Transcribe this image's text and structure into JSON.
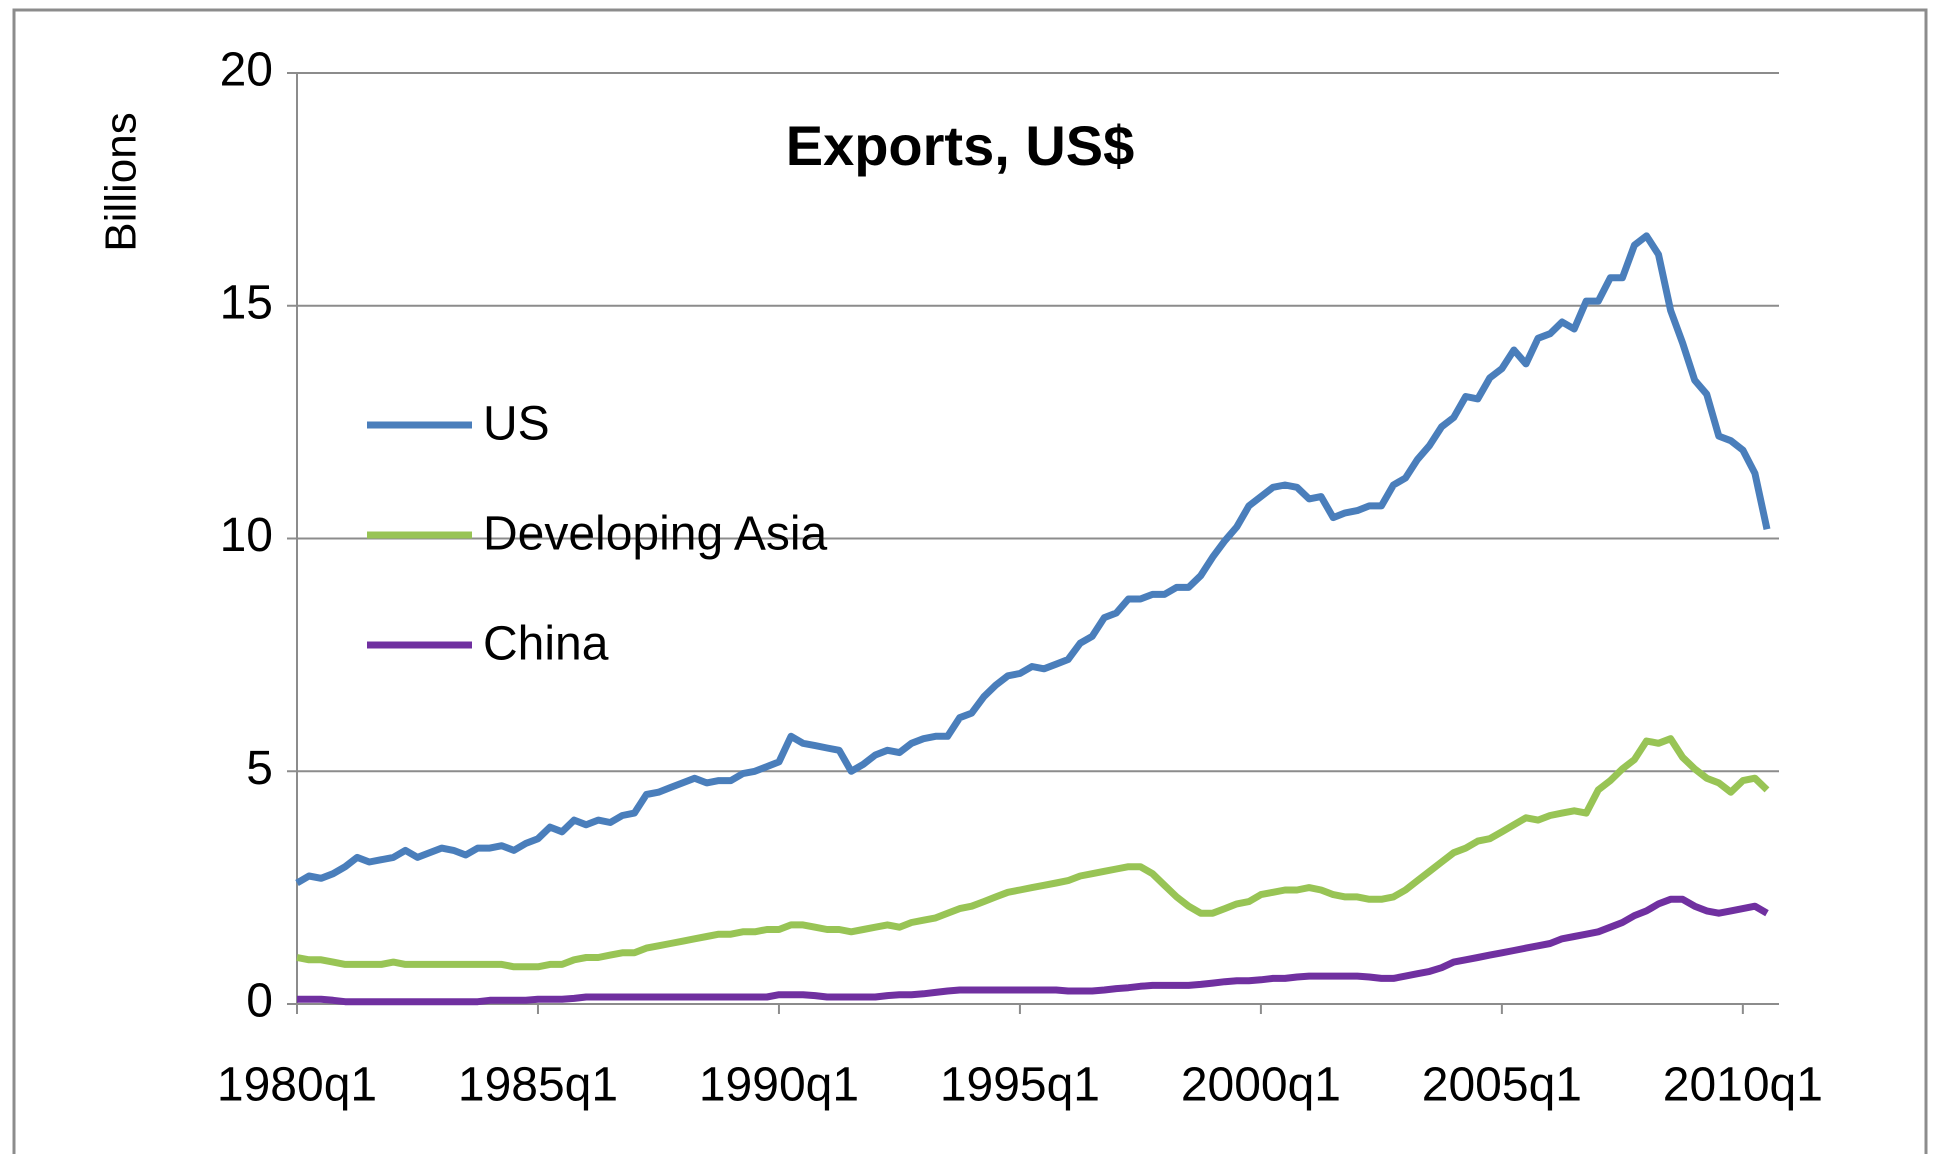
{
  "chart_data": {
    "type": "line",
    "title": "Exports, US$",
    "y_label": "Billions",
    "categories": [
      "1980q1",
      null,
      null,
      null,
      null,
      null,
      null,
      null,
      null,
      null,
      null,
      null,
      null,
      null,
      null,
      null,
      null,
      null,
      null,
      null,
      "1985q1",
      null,
      null,
      null,
      null,
      null,
      null,
      null,
      null,
      null,
      null,
      null,
      null,
      null,
      null,
      null,
      null,
      null,
      null,
      null,
      "1990q1",
      null,
      null,
      null,
      null,
      null,
      null,
      null,
      null,
      null,
      null,
      null,
      null,
      null,
      null,
      null,
      null,
      null,
      null,
      null,
      "1995q1",
      null,
      null,
      null,
      null,
      null,
      null,
      null,
      null,
      null,
      null,
      null,
      null,
      null,
      null,
      null,
      null,
      null,
      null,
      null,
      "2000q1",
      null,
      null,
      null,
      null,
      null,
      null,
      null,
      null,
      null,
      null,
      null,
      null,
      null,
      null,
      null,
      null,
      null,
      null,
      null,
      "2005q1",
      null,
      null,
      null,
      null,
      null,
      null,
      null,
      null,
      null,
      null,
      null,
      null,
      null,
      null,
      null,
      null,
      null,
      null,
      null,
      "2010q1",
      null,
      null
    ],
    "series": [
      {
        "name": "US",
        "color": "#4a7ebb",
        "values": [
          2.6,
          2.75,
          2.7,
          2.8,
          2.95,
          3.15,
          3.05,
          3.1,
          3.15,
          3.3,
          3.15,
          3.25,
          3.35,
          3.3,
          3.2,
          3.35,
          3.35,
          3.4,
          3.3,
          3.45,
          3.55,
          3.8,
          3.7,
          3.95,
          3.85,
          3.95,
          3.9,
          4.05,
          4.1,
          4.5,
          4.55,
          4.65,
          4.75,
          4.85,
          4.75,
          4.8,
          4.8,
          4.95,
          5.0,
          5.1,
          5.2,
          5.75,
          5.6,
          5.55,
          5.5,
          5.45,
          5.0,
          5.15,
          5.35,
          5.45,
          5.4,
          5.6,
          5.7,
          5.75,
          5.75,
          6.15,
          6.25,
          6.6,
          6.85,
          7.05,
          7.1,
          7.25,
          7.2,
          7.3,
          7.4,
          7.75,
          7.9,
          8.3,
          8.4,
          8.7,
          8.7,
          8.8,
          8.8,
          8.95,
          8.95,
          9.2,
          9.6,
          9.95,
          10.25,
          10.7,
          10.9,
          11.1,
          11.15,
          11.1,
          10.85,
          10.9,
          10.45,
          10.55,
          10.6,
          10.7,
          10.7,
          11.15,
          11.3,
          11.7,
          12.0,
          12.4,
          12.6,
          13.05,
          13.0,
          13.45,
          13.65,
          14.05,
          13.75,
          14.3,
          14.4,
          14.65,
          14.5,
          15.1,
          15.1,
          15.6,
          15.6,
          16.3,
          16.5,
          16.1,
          14.9,
          14.2,
          13.4,
          13.1,
          12.2,
          12.1,
          11.9,
          11.4,
          10.2
        ]
      },
      {
        "name": "Developing Asia",
        "color": "#98c455",
        "values": [
          1.0,
          0.95,
          0.95,
          0.9,
          0.85,
          0.85,
          0.85,
          0.85,
          0.9,
          0.85,
          0.85,
          0.85,
          0.85,
          0.85,
          0.85,
          0.85,
          0.85,
          0.85,
          0.8,
          0.8,
          0.8,
          0.85,
          0.85,
          0.95,
          1.0,
          1.0,
          1.05,
          1.1,
          1.1,
          1.2,
          1.25,
          1.3,
          1.35,
          1.4,
          1.45,
          1.5,
          1.5,
          1.55,
          1.55,
          1.6,
          1.6,
          1.7,
          1.7,
          1.65,
          1.6,
          1.6,
          1.55,
          1.6,
          1.65,
          1.7,
          1.65,
          1.75,
          1.8,
          1.85,
          1.95,
          2.05,
          2.1,
          2.2,
          2.3,
          2.4,
          2.45,
          2.5,
          2.55,
          2.6,
          2.65,
          2.75,
          2.8,
          2.85,
          2.9,
          2.95,
          2.95,
          2.8,
          2.55,
          2.3,
          2.1,
          1.95,
          1.95,
          2.05,
          2.15,
          2.2,
          2.35,
          2.4,
          2.45,
          2.45,
          2.5,
          2.45,
          2.35,
          2.3,
          2.3,
          2.25,
          2.25,
          2.3,
          2.45,
          2.65,
          2.85,
          3.05,
          3.25,
          3.35,
          3.5,
          3.55,
          3.7,
          3.85,
          4.0,
          3.95,
          4.05,
          4.1,
          4.15,
          4.1,
          4.6,
          4.8,
          5.05,
          5.25,
          5.65,
          5.6,
          5.7,
          5.3,
          5.05,
          4.85,
          4.75,
          4.55,
          4.8,
          4.85,
          4.6
        ]
      },
      {
        "name": "China",
        "color": "#7030a0",
        "values": [
          0.1,
          0.1,
          0.1,
          0.08,
          0.05,
          0.05,
          0.05,
          0.05,
          0.05,
          0.05,
          0.05,
          0.05,
          0.05,
          0.05,
          0.05,
          0.05,
          0.08,
          0.08,
          0.08,
          0.08,
          0.1,
          0.1,
          0.1,
          0.12,
          0.15,
          0.15,
          0.15,
          0.15,
          0.15,
          0.15,
          0.15,
          0.15,
          0.15,
          0.15,
          0.15,
          0.15,
          0.15,
          0.15,
          0.15,
          0.15,
          0.2,
          0.2,
          0.2,
          0.18,
          0.15,
          0.15,
          0.15,
          0.15,
          0.15,
          0.18,
          0.2,
          0.2,
          0.22,
          0.25,
          0.28,
          0.3,
          0.3,
          0.3,
          0.3,
          0.3,
          0.3,
          0.3,
          0.3,
          0.3,
          0.28,
          0.28,
          0.28,
          0.3,
          0.33,
          0.35,
          0.38,
          0.4,
          0.4,
          0.4,
          0.4,
          0.42,
          0.45,
          0.48,
          0.5,
          0.5,
          0.52,
          0.55,
          0.55,
          0.58,
          0.6,
          0.6,
          0.6,
          0.6,
          0.6,
          0.58,
          0.55,
          0.55,
          0.6,
          0.65,
          0.7,
          0.78,
          0.9,
          0.95,
          1.0,
          1.05,
          1.1,
          1.15,
          1.2,
          1.25,
          1.3,
          1.4,
          1.45,
          1.5,
          1.55,
          1.65,
          1.75,
          1.9,
          2.0,
          2.15,
          2.25,
          2.25,
          2.1,
          2.0,
          1.95,
          2.0,
          2.05,
          2.1,
          1.95
        ]
      }
    ],
    "ylim": [
      0,
      20
    ],
    "yticks": [
      0,
      5,
      10,
      15,
      20
    ],
    "grid": true,
    "legend": "left"
  }
}
